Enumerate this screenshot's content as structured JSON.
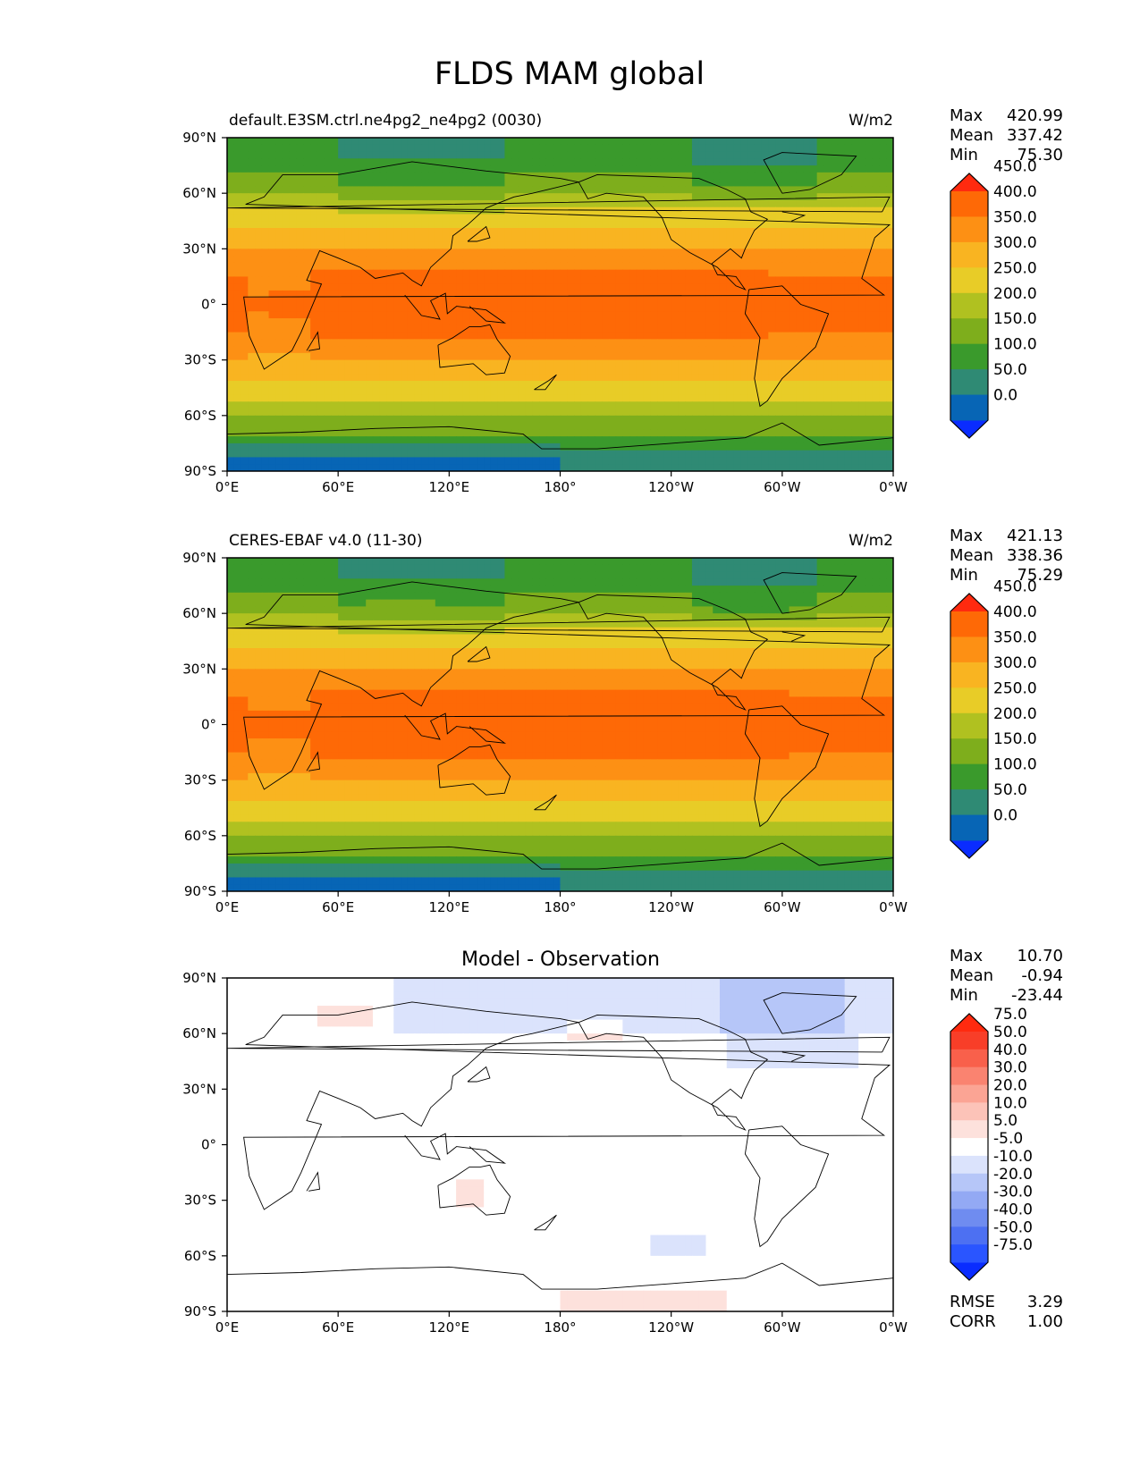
{
  "figure": {
    "title": "FLDS MAM global"
  },
  "chart_data": [
    {
      "type": "heatmap",
      "title": "default.E3SM.ctrl.ne4pg2_ne4pg2 (0030)",
      "units": "W/m2",
      "stats": {
        "max_label": "Max",
        "mean_label": "Mean",
        "min_label": "Min",
        "max": "420.99",
        "mean": "337.42",
        "min": "75.30"
      },
      "xticks": [
        "0°E",
        "60°E",
        "120°E",
        "180°",
        "120°W",
        "60°W",
        "0°W"
      ],
      "yticks": [
        "90°N",
        "60°N",
        "30°N",
        "0°",
        "30°S",
        "60°S",
        "90°S"
      ],
      "xlim": [
        0,
        360
      ],
      "ylim": [
        -90,
        90
      ],
      "field": "model",
      "colorbar": {
        "colors": [
          "#0a2cff",
          "#0765b5",
          "#2f8a74",
          "#3a9a2c",
          "#7eae1c",
          "#b0c120",
          "#e8cc27",
          "#f9b421",
          "#fd9014",
          "#fe6906",
          "#ff2a0f"
        ],
        "labels": [
          "0.0",
          "50.0",
          "100.0",
          "150.0",
          "200.0",
          "250.0",
          "300.0",
          "350.0",
          "400.0",
          "450.0"
        ]
      }
    },
    {
      "type": "heatmap",
      "title": "CERES-EBAF v4.0 (11-30)",
      "units": "W/m2",
      "stats": {
        "max_label": "Max",
        "mean_label": "Mean",
        "min_label": "Min",
        "max": "421.13",
        "mean": "338.36",
        "min": "75.29"
      },
      "xticks": [
        "0°E",
        "60°E",
        "120°E",
        "180°",
        "120°W",
        "60°W",
        "0°W"
      ],
      "yticks": [
        "90°N",
        "60°N",
        "30°N",
        "0°",
        "30°S",
        "60°S",
        "90°S"
      ],
      "xlim": [
        0,
        360
      ],
      "ylim": [
        -90,
        90
      ],
      "field": "obs",
      "colorbar": {
        "colors": [
          "#0a2cff",
          "#0765b5",
          "#2f8a74",
          "#3a9a2c",
          "#7eae1c",
          "#b0c120",
          "#e8cc27",
          "#f9b421",
          "#fd9014",
          "#fe6906",
          "#ff2a0f"
        ],
        "labels": [
          "0.0",
          "50.0",
          "100.0",
          "150.0",
          "200.0",
          "250.0",
          "300.0",
          "350.0",
          "400.0",
          "450.0"
        ]
      }
    },
    {
      "type": "heatmap",
      "title": "Model - Observation",
      "units": "",
      "stats": {
        "max_label": "Max",
        "mean_label": "Mean",
        "min_label": "Min",
        "max": "10.70",
        "mean": "-0.94",
        "min": "-23.44",
        "rmse_label": "RMSE",
        "corr_label": "CORR",
        "rmse": "3.29",
        "corr": "1.00"
      },
      "xticks": [
        "0°E",
        "60°E",
        "120°E",
        "180°",
        "120°W",
        "60°W",
        "0°W"
      ],
      "yticks": [
        "90°N",
        "60°N",
        "30°N",
        "0°",
        "30°S",
        "60°S",
        "90°S"
      ],
      "xlim": [
        0,
        360
      ],
      "ylim": [
        -90,
        90
      ],
      "field": "diff",
      "colorbar": {
        "colors": [
          "#0a2cff",
          "#2a55ff",
          "#4d70f2",
          "#6f8cf0",
          "#93a9f4",
          "#b6c6f8",
          "#dbe3fc",
          "#ffffff",
          "#fde1dc",
          "#fcc3b8",
          "#fba494",
          "#fa8370",
          "#f9604b",
          "#f83e28",
          "#ff2a0f"
        ],
        "labels": [
          "-75.0",
          "-50.0",
          "-40.0",
          "-30.0",
          "-20.0",
          "-10.0",
          "-5.0",
          "5.0",
          "10.0",
          "20.0",
          "30.0",
          "40.0",
          "50.0",
          "75.0"
        ]
      }
    }
  ]
}
